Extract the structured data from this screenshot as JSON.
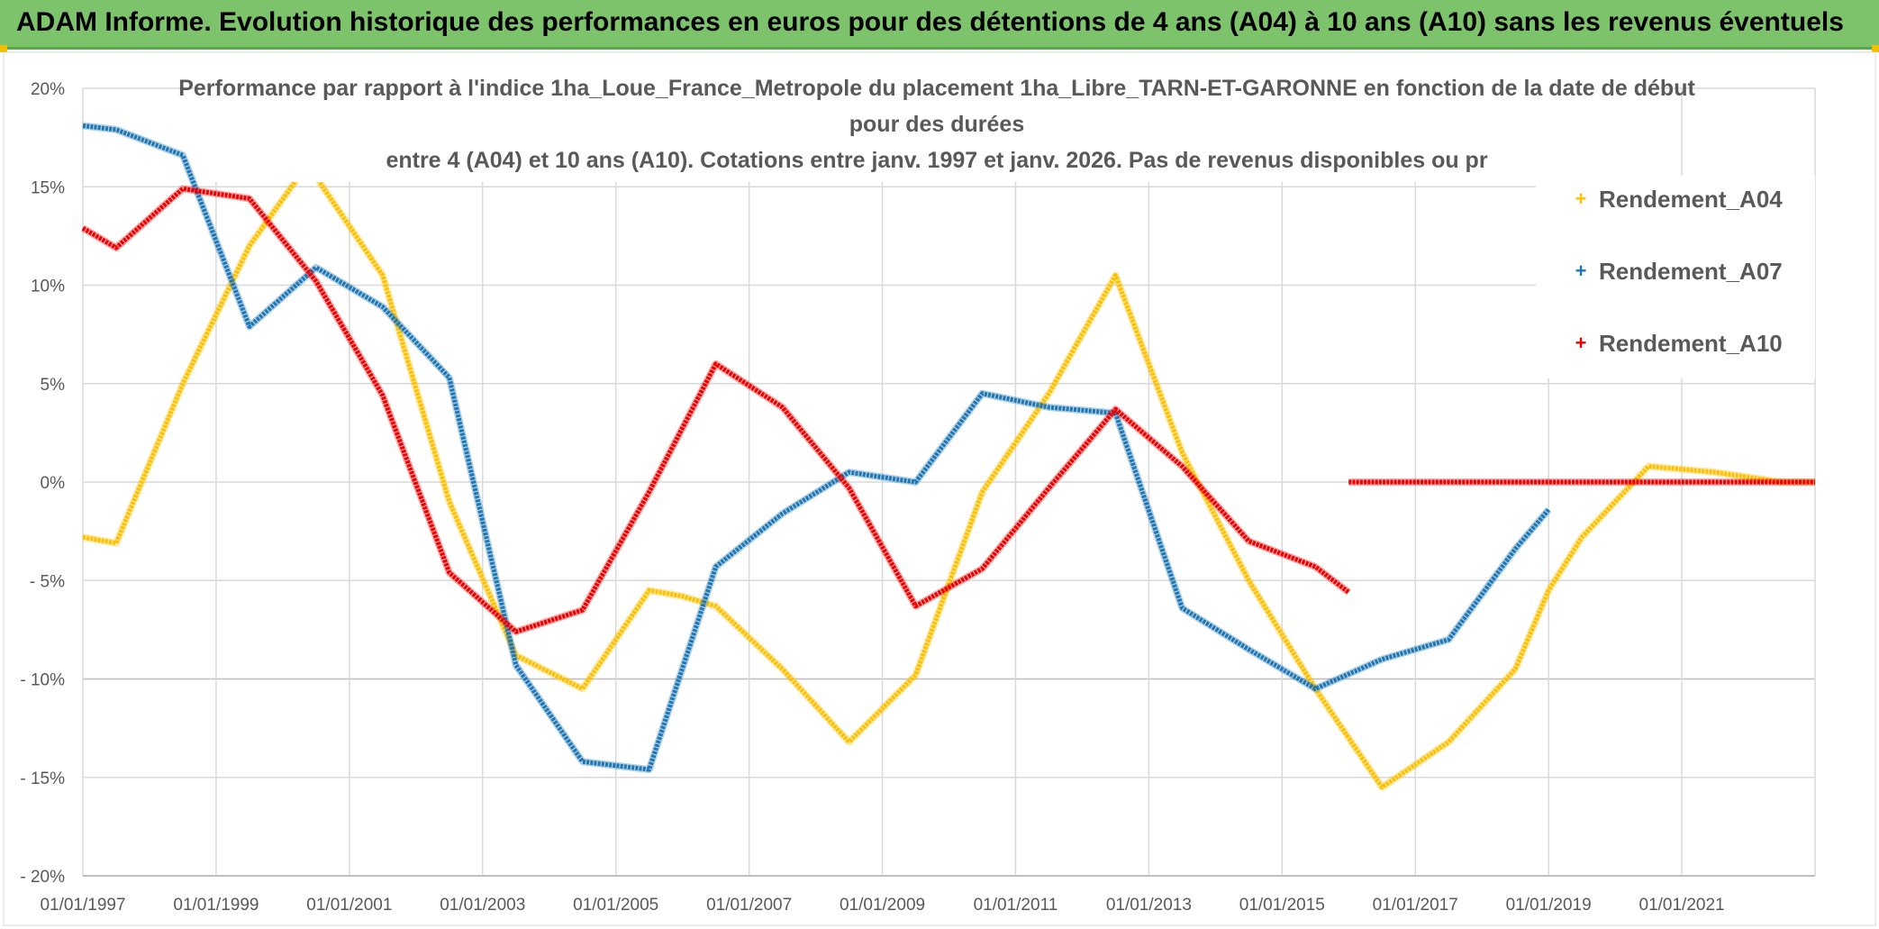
{
  "banner": {
    "title": "ADAM Informe. Evolution historique des performances en euros pour des détentions de 4 ans (A04) à 10 ans (A10) sans les revenus éventuels"
  },
  "chart_data": {
    "type": "line",
    "title_lines": [
      "Performance par rapport à l'indice 1ha_Loue_France_Metropole  du placement 1ha_Libre_TARN-ET-GARONNE en fonction de la date de début",
      "pour des durées",
      "entre 4 (A04) et 10 ans (A10). Cotations entre janv. 1997 et janv. 2026. Pas de revenus disponibles ou pr"
    ],
    "xlabel": "",
    "ylabel": "",
    "xlim": [
      1997.0,
      2023.0
    ],
    "ylim": [
      -20,
      20
    ],
    "x_ticks": [
      "01/01/1997",
      "01/01/1999",
      "01/01/2001",
      "01/01/2003",
      "01/01/2005",
      "01/01/2007",
      "01/01/2009",
      "01/01/2011",
      "01/01/2013",
      "01/01/2015",
      "01/01/2017",
      "01/01/2019",
      "01/01/2021"
    ],
    "y_ticks": [
      "20%",
      "15%",
      "10%",
      "5%",
      "0%",
      "- 5%",
      "- 10%",
      "- 15%",
      "- 20%"
    ],
    "y_tick_values": [
      20,
      15,
      10,
      5,
      0,
      -5,
      -10,
      -15,
      -20
    ],
    "grid": true,
    "legend_position": "right",
    "series": [
      {
        "name": "Rendement_A04",
        "color": "#ffc000",
        "points": [
          [
            1997.0,
            -2.8
          ],
          [
            1997.5,
            -3.1
          ],
          [
            1998.5,
            5.0
          ],
          [
            1999.5,
            12.0
          ],
          [
            2000.3,
            15.8
          ],
          [
            2000.5,
            15.5
          ],
          [
            2001.5,
            10.5
          ],
          [
            2002.5,
            -1.0
          ],
          [
            2003.5,
            -8.8
          ],
          [
            2004.5,
            -10.5
          ],
          [
            2005.5,
            -5.5
          ],
          [
            2006.0,
            -5.8
          ],
          [
            2006.5,
            -6.3
          ],
          [
            2007.5,
            -9.5
          ],
          [
            2008.5,
            -13.2
          ],
          [
            2009.5,
            -9.8
          ],
          [
            2010.5,
            -0.5
          ],
          [
            2011.5,
            4.5
          ],
          [
            2012.5,
            10.5
          ],
          [
            2013.5,
            1.5
          ],
          [
            2014.5,
            -5.0
          ],
          [
            2015.5,
            -10.5
          ],
          [
            2016.5,
            -15.5
          ],
          [
            2017.5,
            -13.2
          ],
          [
            2018.5,
            -9.5
          ],
          [
            2019.0,
            -5.5
          ],
          [
            2019.5,
            -2.8
          ],
          [
            2020.5,
            0.8
          ],
          [
            2021.5,
            0.5
          ],
          [
            2022.5,
            0.0
          ],
          [
            2023.0,
            0.0
          ]
        ]
      },
      {
        "name": "Rendement_A07",
        "color": "#1f77b4",
        "points": [
          [
            1997.0,
            18.1
          ],
          [
            1997.5,
            17.9
          ],
          [
            1998.5,
            16.6
          ],
          [
            1999.5,
            7.9
          ],
          [
            2000.5,
            10.9
          ],
          [
            2001.5,
            8.9
          ],
          [
            2002.5,
            5.3
          ],
          [
            2003.5,
            -9.3
          ],
          [
            2004.5,
            -14.2
          ],
          [
            2005.5,
            -14.6
          ],
          [
            2006.5,
            -4.3
          ],
          [
            2007.5,
            -1.6
          ],
          [
            2008.5,
            0.5
          ],
          [
            2009.5,
            0.0
          ],
          [
            2010.5,
            4.5
          ],
          [
            2011.5,
            3.8
          ],
          [
            2012.5,
            3.5
          ],
          [
            2013.5,
            -6.4
          ],
          [
            2014.5,
            -8.5
          ],
          [
            2015.5,
            -10.5
          ],
          [
            2016.5,
            -9.0
          ],
          [
            2017.5,
            -8.0
          ],
          [
            2018.5,
            -3.4
          ],
          [
            2019.0,
            -1.4
          ]
        ]
      },
      {
        "name": "Rendement_A10",
        "color": "#ee0000",
        "points": [
          [
            1997.0,
            12.9
          ],
          [
            1997.5,
            11.9
          ],
          [
            1998.5,
            14.9
          ],
          [
            1999.5,
            14.4
          ],
          [
            2000.5,
            10.2
          ],
          [
            2001.5,
            4.4
          ],
          [
            2002.5,
            -4.6
          ],
          [
            2003.5,
            -7.6
          ],
          [
            2004.5,
            -6.5
          ],
          [
            2005.5,
            -0.5
          ],
          [
            2006.5,
            6.0
          ],
          [
            2007.5,
            3.8
          ],
          [
            2008.5,
            -0.3
          ],
          [
            2009.5,
            -6.3
          ],
          [
            2010.5,
            -4.4
          ],
          [
            2011.5,
            -0.3
          ],
          [
            2012.5,
            3.7
          ],
          [
            2013.5,
            0.8
          ],
          [
            2014.5,
            -3.0
          ],
          [
            2015.5,
            -4.3
          ],
          [
            2016.0,
            -5.6
          ]
        ]
      },
      {
        "name": "Rendement_A10",
        "color": "#ee0000",
        "points": [
          [
            2016.0,
            0.0
          ],
          [
            2023.0,
            0.0
          ]
        ]
      }
    ]
  }
}
